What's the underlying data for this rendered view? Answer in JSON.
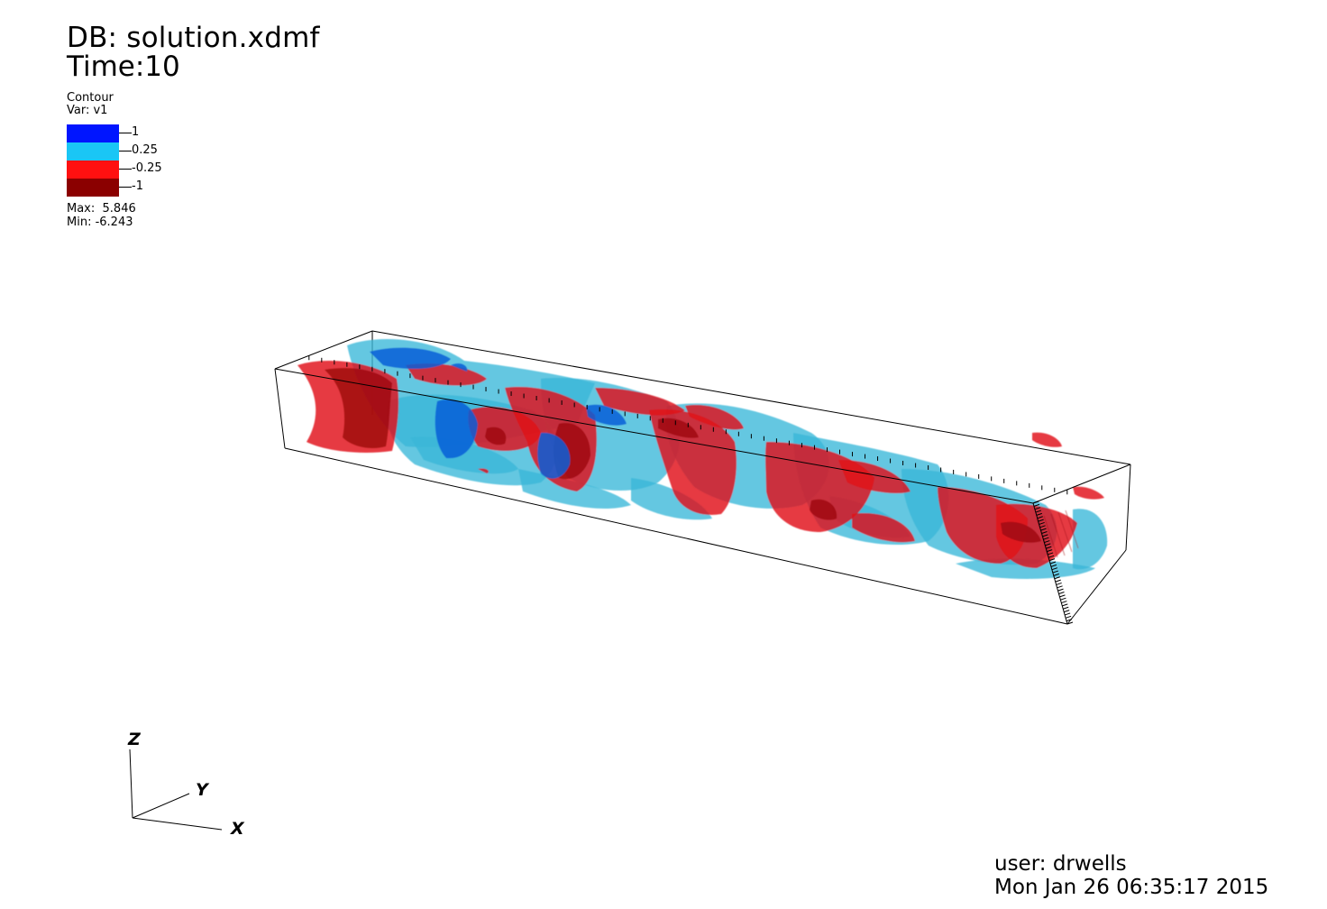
{
  "header": {
    "db": "DB: solution.xdmf",
    "time": "Time:10"
  },
  "legend": {
    "plot": "Contour",
    "var": "Var: v1",
    "levels": [
      {
        "label": "1",
        "color": "#0015ff"
      },
      {
        "label": "0.25",
        "color": "#1ac6f5"
      },
      {
        "label": "-0.25",
        "color": "#ff1010"
      },
      {
        "label": "-1",
        "color": "#8b0000"
      }
    ],
    "max": "Max:  5.846",
    "min": "Min: -6.243"
  },
  "triad": {
    "z": "Z",
    "y": "Y",
    "x": "X"
  },
  "footer": {
    "user": "user: drwells",
    "date": "Mon Jan 26 06:35:17 2015"
  },
  "colors": {
    "iso_blue_dark": "#0a5fd8",
    "iso_cyan": "#3ab7d8",
    "iso_red": "#e01018",
    "iso_dark_red": "#a00810"
  }
}
